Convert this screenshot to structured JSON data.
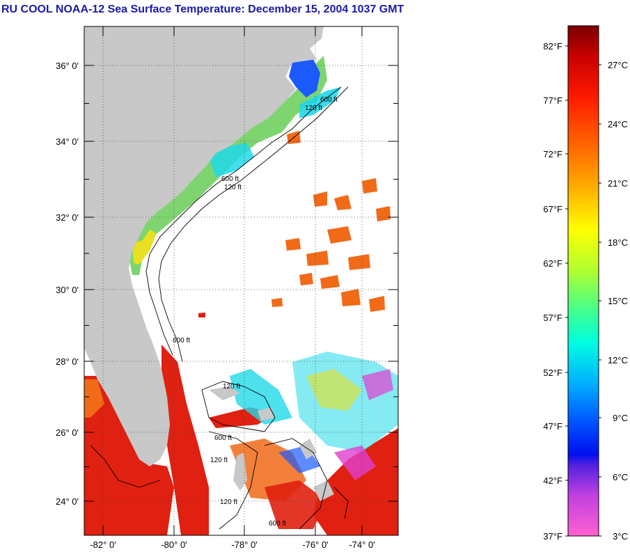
{
  "title": "RU COOL  NOAA-12  Sea Surface Temperature:  December 15, 2004 1037 GMT",
  "map": {
    "latitude_labels": [
      "36° 0'",
      "34° 0'",
      "32° 0'",
      "30° 0'",
      "28° 0'",
      "26° 0'",
      "24° 0'"
    ],
    "longitude_labels": [
      "-82° 0'",
      "-80° 0'",
      "-78° 0'",
      "-76° 0'",
      "-74° 0'"
    ],
    "contour_labels": [
      "120 ft",
      "600 ft",
      "600 ft",
      "120 ft",
      "600 ft",
      "120 ft",
      "600 ft",
      "120 ft",
      "600 ft",
      "120 ft"
    ],
    "colors": {
      "land": "#c8c8c8",
      "cloud": "#ffffff",
      "warm": "#e02010",
      "orange": "#f06a18",
      "yellow": "#e8e020",
      "green": "#70d060",
      "cyan": "#20d8e8",
      "blue": "#1a5aff",
      "magenta": "#e040d0"
    }
  },
  "colorbar": {
    "fahrenheit_labels": [
      "82°F",
      "77°F",
      "72°F",
      "67°F",
      "62°F",
      "57°F",
      "52°F",
      "47°F",
      "42°F",
      "37°F"
    ],
    "celsius_labels": [
      "27°C",
      "24°C",
      "21°C",
      "18°C",
      "15°C",
      "12°C",
      "9°C",
      "6°C",
      "3°C"
    ]
  }
}
